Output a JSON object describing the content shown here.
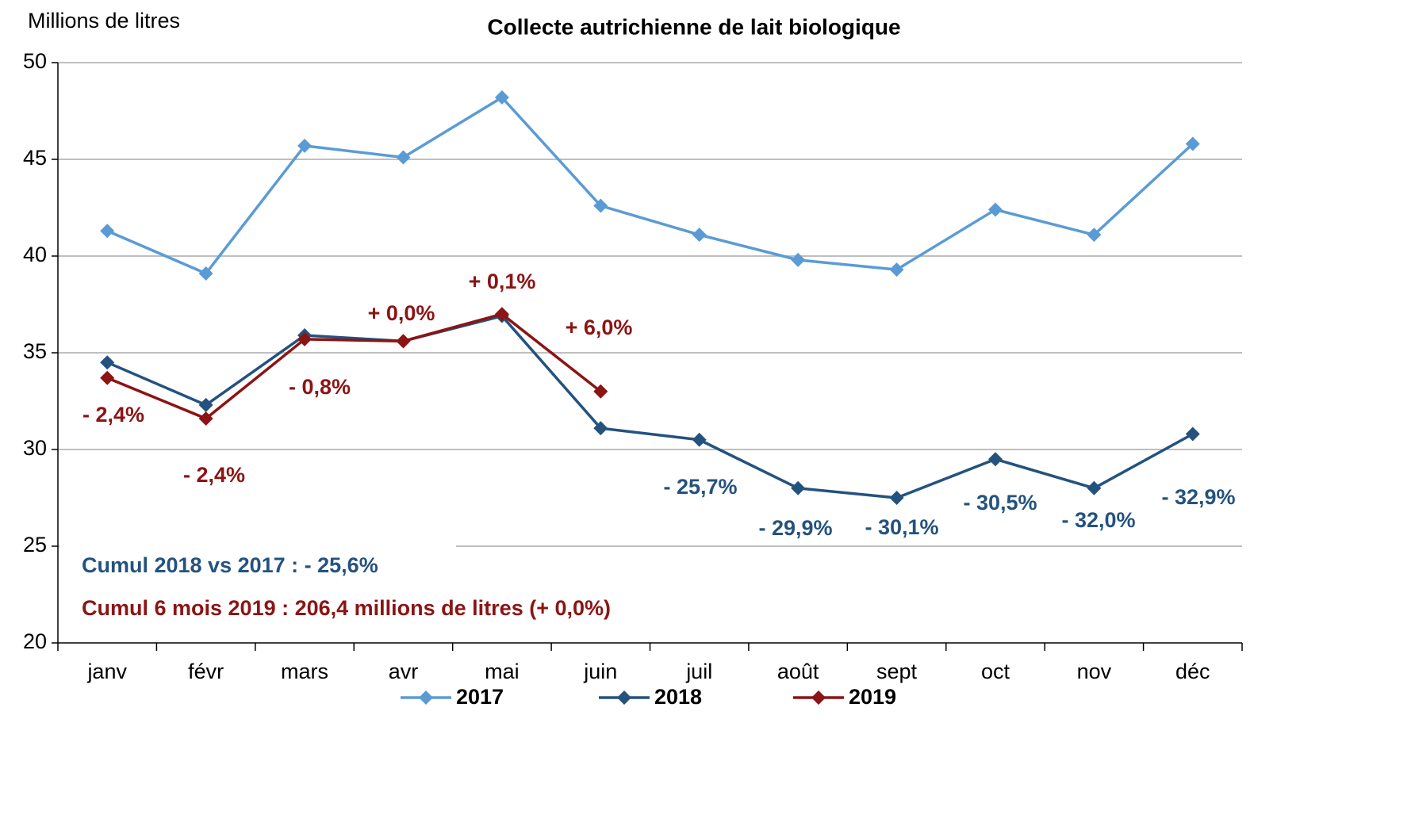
{
  "chart_data": {
    "type": "line",
    "title": "Collecte autrichienne de lait biologique",
    "y_axis_label": "Millions de litres",
    "categories": [
      "janv",
      "févr",
      "mars",
      "avr",
      "mai",
      "juin",
      "juil",
      "août",
      "sept",
      "oct",
      "nov",
      "déc"
    ],
    "series": [
      {
        "name": "2017",
        "color": "#5b9bd5",
        "values": [
          41.3,
          39.1,
          45.7,
          45.1,
          48.2,
          42.6,
          41.1,
          39.8,
          39.3,
          42.4,
          41.1,
          45.8
        ]
      },
      {
        "name": "2018",
        "color": "#24527f",
        "values": [
          34.5,
          32.3,
          35.9,
          35.6,
          36.9,
          31.1,
          30.5,
          28.0,
          27.5,
          29.5,
          28.0,
          30.8
        ]
      },
      {
        "name": "2019",
        "color": "#8c1414",
        "values": [
          33.7,
          31.6,
          35.7,
          35.6,
          37.0,
          33.0,
          null,
          null,
          null,
          null,
          null,
          null
        ]
      }
    ],
    "ylim": [
      20,
      50
    ],
    "yticks": [
      20,
      25,
      30,
      35,
      40,
      45,
      50
    ],
    "grid": true,
    "legend": "bottom",
    "annotations": [
      {
        "text": "- 2,4%",
        "color": "#8c1414"
      },
      {
        "text": "- 2,4%",
        "color": "#8c1414"
      },
      {
        "text": "- 0,8%",
        "color": "#8c1414"
      },
      {
        "text": "+ 0,0%",
        "color": "#8c1414"
      },
      {
        "text": "+ 0,1%",
        "color": "#8c1414"
      },
      {
        "text": "+ 6,0%",
        "color": "#8c1414"
      },
      {
        "text": "- 25,7%",
        "color": "#24527f"
      },
      {
        "text": "- 29,9%",
        "color": "#24527f"
      },
      {
        "text": "- 30,1%",
        "color": "#24527f"
      },
      {
        "text": "- 30,5%",
        "color": "#24527f"
      },
      {
        "text": "- 32,0%",
        "color": "#24527f"
      },
      {
        "text": "- 32,9%",
        "color": "#24527f"
      },
      {
        "text": "Cumul 2018  vs 2017 :  - 25,6%",
        "color": "#24527f"
      },
      {
        "text": "Cumul 6 mois 2019 : 206,4 millions de litres (+ 0,0%)",
        "color": "#8c1414"
      }
    ]
  }
}
